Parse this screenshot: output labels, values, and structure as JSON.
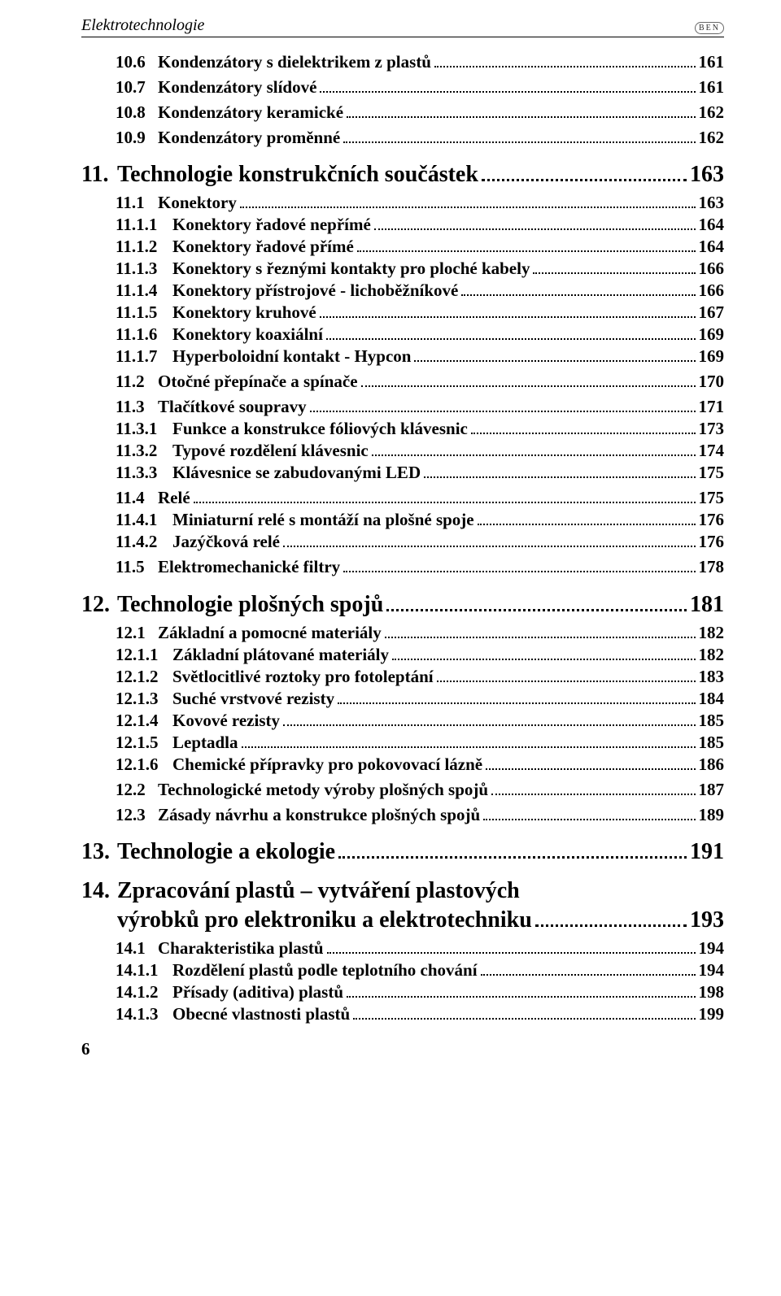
{
  "header": {
    "title": "Elektrotechnologie",
    "logo": "BEN"
  },
  "footer_page": "6",
  "toc": [
    {
      "level": "section",
      "num": "10.6",
      "title": "Kondenzátory s dielektrikem z plastů",
      "page": "161"
    },
    {
      "level": "section",
      "num": "10.7",
      "title": "Kondenzátory slídové",
      "page": "161"
    },
    {
      "level": "section",
      "num": "10.8",
      "title": "Kondenzátory keramické",
      "page": "162"
    },
    {
      "level": "section",
      "num": "10.9",
      "title": "Kondenzátory proměnné",
      "page": "162"
    },
    {
      "level": "chapter",
      "num": "11.",
      "title": "Technologie konstrukčních součástek",
      "page": "163"
    },
    {
      "level": "section",
      "num": "11.1",
      "title": "Konektory",
      "page": "163"
    },
    {
      "level": "sub",
      "num": "11.1.1",
      "title": "Konektory řadové nepřímé",
      "page": "164"
    },
    {
      "level": "sub",
      "num": "11.1.2",
      "title": "Konektory řadové přímé",
      "page": "164"
    },
    {
      "level": "sub",
      "num": "11.1.3",
      "title": "Konektory s řeznými kontakty pro ploché kabely",
      "page": "166"
    },
    {
      "level": "sub",
      "num": "11.1.4",
      "title": "Konektory přístrojové - lichoběžníkové",
      "page": "166"
    },
    {
      "level": "sub",
      "num": "11.1.5",
      "title": "Konektory kruhové",
      "page": "167"
    },
    {
      "level": "sub",
      "num": "11.1.6",
      "title": "Konektory koaxiální",
      "page": "169"
    },
    {
      "level": "sub",
      "num": "11.1.7",
      "title": "Hyperboloidní kontakt - Hypcon",
      "page": "169"
    },
    {
      "level": "section",
      "num": "11.2",
      "title": "Otočné přepínače a spínače",
      "page": "170"
    },
    {
      "level": "section",
      "num": "11.3",
      "title": "Tlačítkové soupravy",
      "page": "171"
    },
    {
      "level": "sub",
      "num": "11.3.1",
      "title": "Funkce a konstrukce fóliových klávesnic",
      "page": "173"
    },
    {
      "level": "sub",
      "num": "11.3.2",
      "title": "Typové rozdělení klávesnic",
      "page": "174"
    },
    {
      "level": "sub",
      "num": "11.3.3",
      "title": "Klávesnice se zabudovanými LED",
      "page": "175"
    },
    {
      "level": "section",
      "num": "11.4",
      "title": "Relé",
      "page": "175"
    },
    {
      "level": "sub",
      "num": "11.4.1",
      "title": "Miniaturní relé s montáží na plošné spoje",
      "page": "176"
    },
    {
      "level": "sub",
      "num": "11.4.2",
      "title": "Jazýčková relé",
      "page": "176"
    },
    {
      "level": "section",
      "num": "11.5",
      "title": "Elektromechanické filtry",
      "page": "178"
    },
    {
      "level": "chapter",
      "num": "12.",
      "title": "Technologie plošných spojů",
      "page": "181"
    },
    {
      "level": "section",
      "num": "12.1",
      "title": "Základní a pomocné materiály",
      "page": "182"
    },
    {
      "level": "sub",
      "num": "12.1.1",
      "title": "Základní plátované materiály",
      "page": "182"
    },
    {
      "level": "sub",
      "num": "12.1.2",
      "title": "Světlocitlivé roztoky pro fotoleptání",
      "page": "183"
    },
    {
      "level": "sub",
      "num": "12.1.3",
      "title": "Suché vrstvové rezisty",
      "page": "184"
    },
    {
      "level": "sub",
      "num": "12.1.4",
      "title": "Kovové rezisty",
      "page": "185"
    },
    {
      "level": "sub",
      "num": "12.1.5",
      "title": "Leptadla",
      "page": "185"
    },
    {
      "level": "sub",
      "num": "12.1.6",
      "title": "Chemické přípravky pro pokovovací lázně",
      "page": "186"
    },
    {
      "level": "section",
      "num": "12.2",
      "title": "Technologické metody výroby plošných spojů",
      "page": "187"
    },
    {
      "level": "section",
      "num": "12.3",
      "title": "Zásady návrhu a konstrukce plošných spojů",
      "page": "189"
    },
    {
      "level": "chapter",
      "num": "13.",
      "title": "Technologie a ekologie",
      "page": "191"
    },
    {
      "level": "chapter-multiline",
      "num": "14.",
      "title_line1": "Zpracování plastů – vytváření plastových",
      "title_line2": "výrobků pro elektroniku a elektrotechniku",
      "page": "193"
    },
    {
      "level": "section",
      "num": "14.1",
      "title": "Charakteristika plastů",
      "page": "194"
    },
    {
      "level": "sub",
      "num": "14.1.1",
      "title": "Rozdělení plastů podle teplotního chování",
      "page": "194"
    },
    {
      "level": "sub",
      "num": "14.1.2",
      "title": "Přísady (aditiva) plastů",
      "page": "198"
    },
    {
      "level": "sub",
      "num": "14.1.3",
      "title": "Obecné vlastnosti plastů",
      "page": "199"
    }
  ]
}
